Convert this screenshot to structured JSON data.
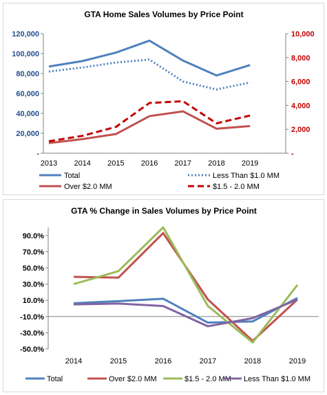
{
  "chart_data": [
    {
      "type": "line",
      "title": "GTA Home Sales Volumes by Price Point",
      "categories": [
        "2013",
        "2014",
        "2015",
        "2016",
        "2017",
        "2018",
        "2019"
      ],
      "y_left": {
        "ylim": [
          0,
          120000
        ],
        "ticks": [
          "-",
          "20,000",
          "40,000",
          "60,000",
          "80,000",
          "100,000",
          "120,000"
        ],
        "color": "#1f4e8c"
      },
      "y_right": {
        "ylim": [
          0,
          10000
        ],
        "ticks": [
          "-",
          "2,000",
          "4,000",
          "6,000",
          "8,000",
          "10,000"
        ],
        "color": "#c00000"
      },
      "grid": false,
      "legend_position": "bottom",
      "series": [
        {
          "name": "Total",
          "axis": "left",
          "color": "#4f81bd",
          "dash": "solid",
          "values": [
            87000,
            92500,
            101000,
            113000,
            93000,
            78000,
            88500
          ]
        },
        {
          "name": "Less Than $1.0 MM",
          "axis": "left",
          "color": "#4f81bd",
          "dash": "dotted",
          "values": [
            82000,
            86000,
            91000,
            94000,
            72000,
            64000,
            71000
          ]
        },
        {
          "name": "Over $2.0 MM",
          "axis": "right",
          "color": "#c0504d",
          "dash": "solid",
          "values": [
            850,
            1180,
            1600,
            3100,
            3500,
            2050,
            2270
          ]
        },
        {
          "name": "$1.5 - 2.0 MM",
          "axis": "right",
          "color": "#c00000",
          "dash": "dashed",
          "values": [
            1000,
            1450,
            2200,
            4200,
            4350,
            2500,
            3150
          ]
        }
      ]
    },
    {
      "type": "line",
      "title": "GTA % Change in Sales Volumes by Price Point",
      "categories": [
        "2014",
        "2015",
        "2016",
        "2017",
        "2018",
        "2019"
      ],
      "y_left": {
        "ylim": [
          -50,
          100
        ],
        "ticks": [
          "-50.0%",
          "-30.0%",
          "-10.0%",
          "10.0%",
          "30.0%",
          "50.0%",
          "70.0%",
          "90.0%"
        ]
      },
      "grid": false,
      "legend_position": "bottom",
      "series": [
        {
          "name": "Total",
          "color": "#4f81bd",
          "values": [
            6.5,
            9.0,
            12.0,
            -17.5,
            -16.0,
            13.0
          ]
        },
        {
          "name": "Over $2.0 MM",
          "color": "#c0504d",
          "values": [
            39.0,
            38.0,
            93.0,
            11.0,
            -40.0,
            11.0
          ]
        },
        {
          "name": "$1.5 - 2.0 MM",
          "color": "#9bbb59",
          "values": [
            30.0,
            46.0,
            100.0,
            3.0,
            -42.0,
            29.0
          ]
        },
        {
          "name": "Less Than $1.0 MM",
          "color": "#8064a2",
          "values": [
            5.0,
            6.0,
            3.0,
            -22.0,
            -12.0,
            11.0
          ]
        }
      ]
    }
  ]
}
